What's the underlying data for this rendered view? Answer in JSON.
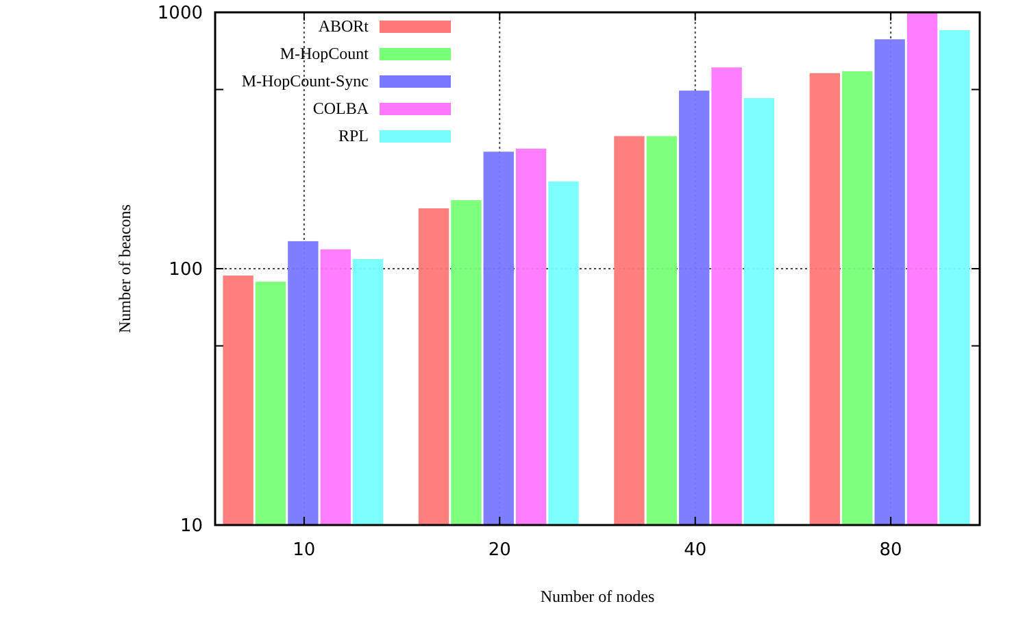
{
  "chart_data": {
    "type": "bar",
    "xlabel": "Number of nodes",
    "ylabel": "Number of beacons",
    "categories": [
      "10",
      "20",
      "40",
      "80"
    ],
    "series": [
      {
        "name": "ABORt",
        "color": "#ff7777",
        "values": [
          94,
          172,
          329,
          579
        ]
      },
      {
        "name": "M-HopCount",
        "color": "#77ff77",
        "values": [
          89,
          185,
          329,
          589
        ]
      },
      {
        "name": "M-HopCount-Sync",
        "color": "#7777ff",
        "values": [
          128,
          286,
          495,
          785
        ]
      },
      {
        "name": "COLBA",
        "color": "#ff77ff",
        "values": [
          119,
          294,
          610,
          995
        ]
      },
      {
        "name": "RPL",
        "color": "#77ffff",
        "values": [
          109,
          219,
          463,
          852
        ]
      }
    ],
    "log": "y",
    "ylim": [
      10,
      1000
    ],
    "yticks": [
      10,
      {
        "value": 50,
        "label": null
      },
      100,
      {
        "value": 500,
        "label": null
      },
      1000
    ],
    "grid": true,
    "legend": "top left"
  }
}
